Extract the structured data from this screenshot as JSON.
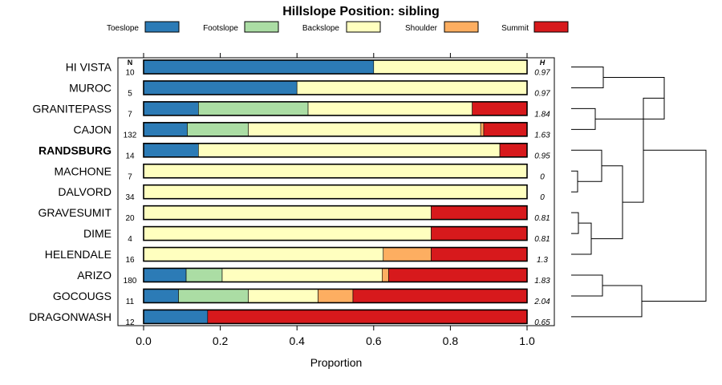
{
  "chart_data": {
    "type": "stacked-bar-horizontal",
    "title": "Hillslope Position: sibling",
    "xlabel": "Proportion",
    "xlim": [
      0,
      1
    ],
    "xticks": [
      "0.0",
      "0.2",
      "0.4",
      "0.6",
      "0.8",
      "1.0"
    ],
    "xtick_values": [
      0,
      0.2,
      0.4,
      0.6,
      0.8,
      1.0
    ],
    "n_header": "N",
    "h_header": "H",
    "highlight": "RANDSBURG",
    "legend": [
      {
        "name": "Toeslope",
        "color": "#2c7bb6"
      },
      {
        "name": "Footslope",
        "color": "#abdda4"
      },
      {
        "name": "Backslope",
        "color": "#ffffbf"
      },
      {
        "name": "Shoulder",
        "color": "#fdae61"
      },
      {
        "name": "Summit",
        "color": "#d7191c"
      }
    ],
    "rows": [
      {
        "name": "HI VISTA",
        "n": "10",
        "h": "0.97",
        "values": [
          0.6,
          0,
          0.4,
          0,
          0
        ]
      },
      {
        "name": "MUROC",
        "n": "5",
        "h": "0.97",
        "values": [
          0.4,
          0,
          0.6,
          0,
          0
        ]
      },
      {
        "name": "GRANITEPASS",
        "n": "7",
        "h": "1.84",
        "values": [
          0.143,
          0.286,
          0.428,
          0,
          0.143
        ]
      },
      {
        "name": "CAJON",
        "n": "132",
        "h": "1.63",
        "values": [
          0.114,
          0.159,
          0.606,
          0.008,
          0.113
        ]
      },
      {
        "name": "RANDSBURG",
        "n": "14",
        "h": "0.95",
        "values": [
          0.143,
          0,
          0.786,
          0,
          0.071
        ]
      },
      {
        "name": "MACHONE",
        "n": "7",
        "h": "0",
        "values": [
          0,
          0,
          1.0,
          0,
          0
        ]
      },
      {
        "name": "DALVORD",
        "n": "34",
        "h": "0",
        "values": [
          0,
          0,
          1.0,
          0,
          0
        ]
      },
      {
        "name": "GRAVESUMIT",
        "n": "20",
        "h": "0.81",
        "values": [
          0,
          0,
          0.75,
          0,
          0.25
        ]
      },
      {
        "name": "DIME",
        "n": "4",
        "h": "0.81",
        "values": [
          0,
          0,
          0.75,
          0,
          0.25
        ]
      },
      {
        "name": "HELENDALE",
        "n": "16",
        "h": "1.3",
        "values": [
          0,
          0,
          0.625,
          0.125,
          0.25
        ]
      },
      {
        "name": "ARIZO",
        "n": "180",
        "h": "1.83",
        "values": [
          0.111,
          0.094,
          0.417,
          0.017,
          0.361
        ]
      },
      {
        "name": "GOCOUGS",
        "n": "11",
        "h": "2.04",
        "values": [
          0.091,
          0.182,
          0.182,
          0.091,
          0.454
        ]
      },
      {
        "name": "DRAGONWASH",
        "n": "12",
        "h": "0.65",
        "values": [
          0.167,
          0,
          0,
          0,
          0.833
        ]
      }
    ]
  }
}
